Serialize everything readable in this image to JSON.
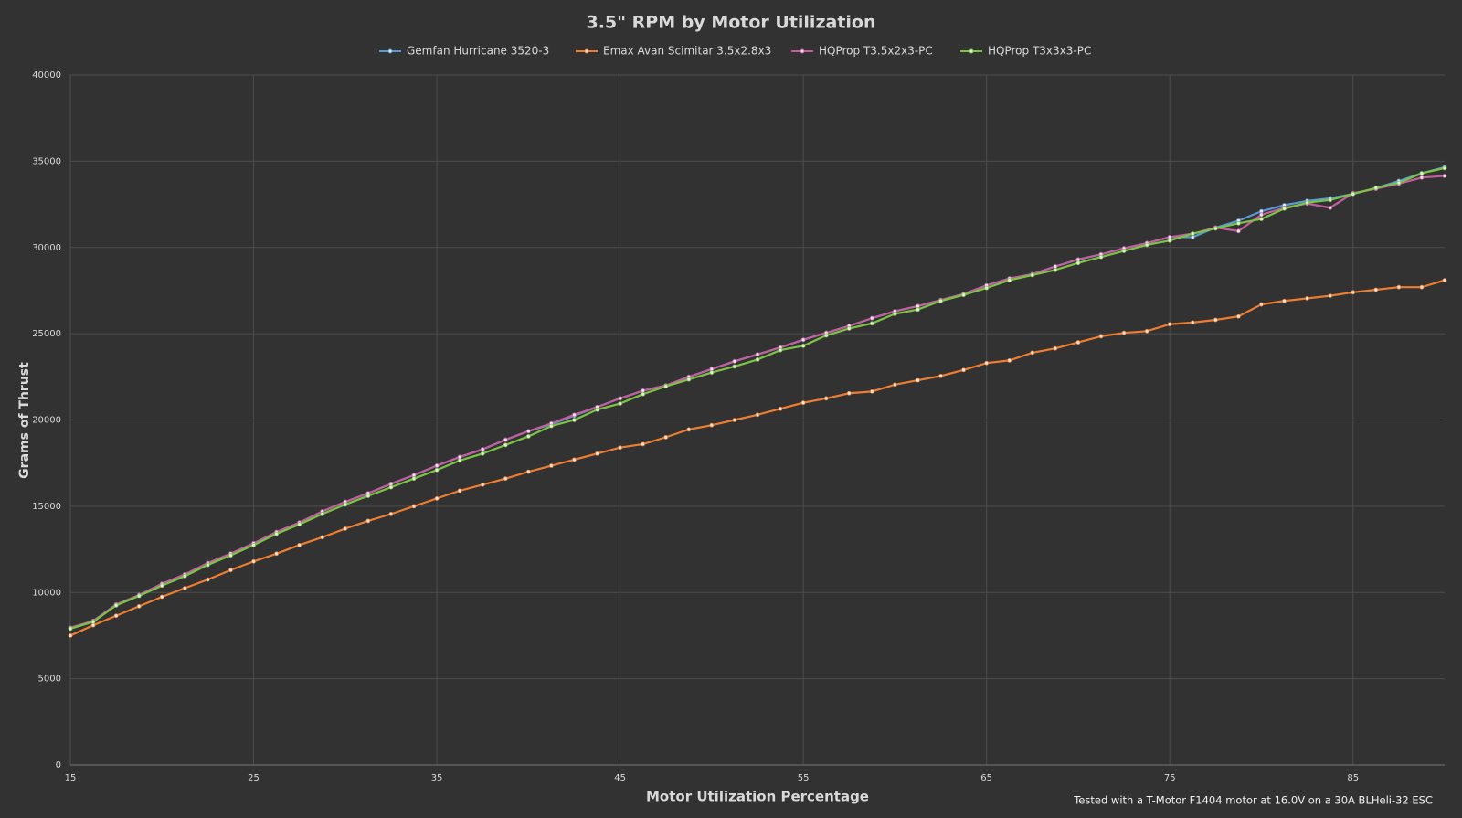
{
  "chart_data": {
    "type": "line",
    "title": "3.5\" RPM by Motor Utilization",
    "x_label": "Motor Utilization Percentage",
    "y_label": "Grams of Thrust",
    "annotation": "Tested with a T-Motor F1404 motor at 16.0V on a 30A BLHeli-32 ESC",
    "x": [
      15,
      16.25,
      17.5,
      18.75,
      20,
      21.25,
      22.5,
      23.75,
      25,
      26.25,
      27.5,
      28.75,
      30,
      31.25,
      32.5,
      33.75,
      35,
      36.25,
      37.5,
      38.75,
      40,
      41.25,
      42.5,
      43.75,
      45,
      46.25,
      47.5,
      48.75,
      50,
      51.25,
      52.5,
      53.75,
      55,
      56.25,
      57.5,
      58.75,
      60,
      61.25,
      62.5,
      63.75,
      65,
      66.25,
      67.5,
      68.75,
      70,
      71.25,
      72.5,
      73.75,
      75,
      76.25,
      77.5,
      78.75,
      80,
      81.25,
      82.5,
      83.75,
      85,
      86.25,
      87.5,
      88.75,
      90
    ],
    "series": [
      {
        "name": "Gemfan Hurricane 3520-3",
        "color": "#5b9bd5",
        "values": [
          7950,
          8350,
          9300,
          9850,
          10500,
          11050,
          11700,
          12250,
          12850,
          13500,
          14050,
          14700,
          15250,
          15750,
          16300,
          16800,
          17350,
          17850,
          18300,
          18850,
          19350,
          19750,
          20250,
          20750,
          21250,
          21700,
          22000,
          22500,
          22950,
          23400,
          23800,
          24200,
          24650,
          25050,
          25450,
          25900,
          26300,
          26600,
          26950,
          27300,
          27800,
          28200,
          28450,
          28900,
          29300,
          29600,
          29950,
          30250,
          30600,
          30600,
          31150,
          31550,
          32100,
          32450,
          32700,
          32850,
          33100,
          33450,
          33850,
          34300,
          34650
        ]
      },
      {
        "name": "Emax Avan Scimitar  3.5x2.8x3",
        "color": "#ed7d31",
        "values": [
          7500,
          8100,
          8650,
          9200,
          9750,
          10250,
          10750,
          11300,
          11800,
          12250,
          12750,
          13200,
          13700,
          14150,
          14550,
          15000,
          15450,
          15900,
          16250,
          16600,
          17000,
          17350,
          17700,
          18050,
          18400,
          18600,
          19000,
          19450,
          19700,
          20000,
          20300,
          20650,
          21000,
          21250,
          21550,
          21650,
          22050,
          22300,
          22550,
          22900,
          23300,
          23450,
          23900,
          24150,
          24500,
          24850,
          25050,
          25150,
          25550,
          25650,
          25800,
          26000,
          26700,
          26900,
          27050,
          27200,
          27400,
          27550,
          27700,
          27700,
          28100
        ]
      },
      {
        "name": "HQProp T3.5x2x3-PC",
        "color": "#c25f9e",
        "values": [
          7950,
          8350,
          9300,
          9850,
          10500,
          11050,
          11700,
          12250,
          12850,
          13500,
          14050,
          14700,
          15250,
          15750,
          16300,
          16800,
          17350,
          17850,
          18300,
          18850,
          19350,
          19800,
          20300,
          20750,
          21250,
          21700,
          22000,
          22500,
          22950,
          23400,
          23800,
          24200,
          24650,
          25050,
          25450,
          25900,
          26300,
          26600,
          26950,
          27300,
          27800,
          28200,
          28450,
          28900,
          29300,
          29600,
          29950,
          30250,
          30600,
          30800,
          31150,
          30950,
          31900,
          32300,
          32550,
          32300,
          33150,
          33400,
          33700,
          34050,
          34150
        ]
      },
      {
        "name": "HQProp T3x3x3-PC",
        "color": "#7cc444",
        "values": [
          7900,
          8300,
          9250,
          9800,
          10400,
          10950,
          11600,
          12150,
          12750,
          13400,
          13950,
          14550,
          15100,
          15600,
          16100,
          16600,
          17100,
          17650,
          18050,
          18550,
          19050,
          19650,
          20000,
          20600,
          20950,
          21500,
          21950,
          22350,
          22750,
          23100,
          23500,
          24050,
          24300,
          24900,
          25300,
          25600,
          26150,
          26400,
          26900,
          27250,
          27650,
          28100,
          28400,
          28700,
          29100,
          29450,
          29800,
          30150,
          30400,
          30800,
          31100,
          31400,
          31650,
          32250,
          32600,
          32750,
          33100,
          33450,
          33750,
          34300,
          34600
        ]
      }
    ],
    "xlim": [
      15,
      90
    ],
    "xticks": [
      15,
      25,
      35,
      45,
      55,
      65,
      75,
      85
    ],
    "ylim": [
      0,
      40000
    ],
    "yticks": [
      0,
      5000,
      10000,
      15000,
      20000,
      25000,
      30000,
      35000,
      40000
    ],
    "grid": true,
    "legend": "top"
  }
}
